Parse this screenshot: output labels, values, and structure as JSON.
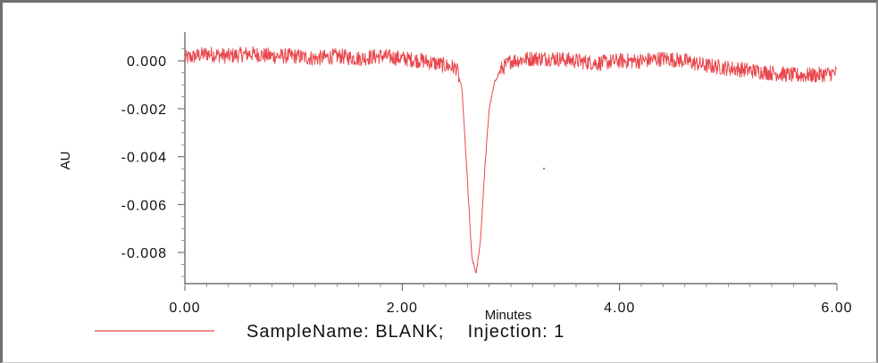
{
  "chart_data": {
    "type": "line",
    "title": "",
    "xlabel": "Minutes",
    "ylabel": "AU",
    "xlim": [
      0,
      6
    ],
    "ylim": [
      -0.0093,
      0.0012
    ],
    "x_ticks": [
      0,
      2,
      4,
      6
    ],
    "x_tick_labels": [
      "0.00",
      "2.00",
      "4.00",
      "6.00"
    ],
    "y_ticks": [
      0.0,
      -0.002,
      -0.004,
      -0.006,
      -0.008
    ],
    "y_tick_labels": [
      "0.000",
      "-0.002",
      "-0.004",
      "-0.006",
      "-0.008"
    ],
    "grid": false,
    "legend_position": "bottom",
    "series": [
      {
        "name": "SampleName: BLANK;    Injection: 1",
        "color": "#e8474d",
        "x": [
          0.0,
          0.2,
          0.4,
          0.6,
          0.8,
          1.0,
          1.2,
          1.4,
          1.6,
          1.8,
          2.0,
          2.2,
          2.4,
          2.5,
          2.55,
          2.6,
          2.64,
          2.68,
          2.72,
          2.76,
          2.8,
          2.85,
          2.9,
          3.0,
          3.2,
          3.4,
          3.6,
          3.8,
          4.0,
          4.2,
          4.4,
          4.6,
          4.8,
          5.0,
          5.2,
          5.4,
          5.6,
          5.8,
          6.0
        ],
        "y": [
          0.0001,
          0.0003,
          0.0002,
          0.0003,
          0.0002,
          0.0002,
          0.0001,
          0.0002,
          0.0001,
          0.0002,
          0.0001,
          0.0,
          -0.0002,
          -0.0003,
          -0.0012,
          -0.005,
          -0.0082,
          -0.0089,
          -0.0075,
          -0.0045,
          -0.002,
          -0.0009,
          -0.0004,
          0.0,
          0.0001,
          0.0001,
          0.0,
          -0.0001,
          0.0,
          0.0,
          0.0001,
          0.0,
          -0.0002,
          -0.0003,
          -0.0004,
          -0.0005,
          -0.0006,
          -0.0006,
          -0.0005
        ]
      }
    ]
  },
  "legend": {
    "text": "SampleName: BLANK;    Injection: 1",
    "color": "#e8474d"
  }
}
